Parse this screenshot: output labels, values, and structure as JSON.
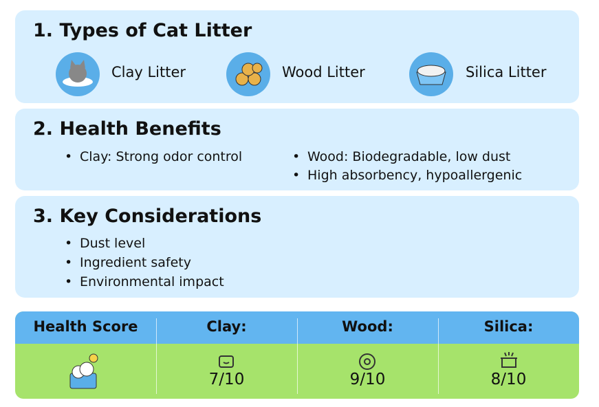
{
  "sections": [
    {
      "title": "1.  Types of Cat Litter",
      "items": [
        "Clay Litter",
        "Wood Litter",
        "Silica Litter"
      ]
    },
    {
      "title": "2. Health Benefits",
      "items": [
        "Clay: Strong odor control",
        "Wood: Biodegradable, low dust",
        "High absorbency, hypoallergenic"
      ]
    },
    {
      "title": "3. Key Considerations",
      "items": [
        "Dust level",
        "Ingredient safety",
        "Environmental impact"
      ]
    }
  ],
  "table": {
    "headers": [
      "Health Score",
      "Clay:",
      "Wood:",
      "Silica:"
    ],
    "scores": [
      "7/10",
      "9/10",
      "8/10"
    ]
  }
}
